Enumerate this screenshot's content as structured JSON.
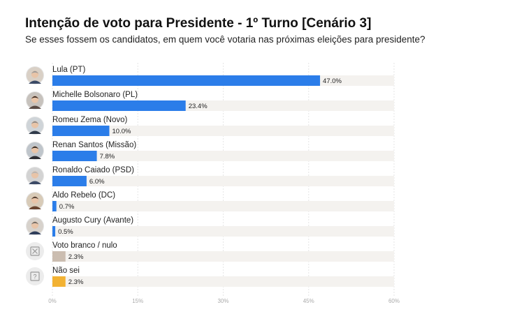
{
  "chart_data": {
    "type": "bar",
    "orientation": "horizontal",
    "title": "Intenção de voto para Presidente - 1º Turno [Cenário 3]",
    "subtitle": "Se esses fossem os candidatos, em quem você votaria nas próximas eleições para presidente?",
    "categories": [
      "Lula (PT)",
      "Michelle Bolsonaro (PL)",
      "Romeu Zema (Novo)",
      "Renan Santos (Missão)",
      "Ronaldo Caiado (PSD)",
      "Aldo Rebelo (DC)",
      "Augusto Cury (Avante)",
      "Voto branco / nulo",
      "Não sei"
    ],
    "values": [
      47.0,
      23.4,
      10.0,
      7.8,
      6.0,
      0.7,
      0.5,
      2.3,
      2.3
    ],
    "value_labels": [
      "47.0%",
      "23.4%",
      "10.0%",
      "7.8%",
      "6.0%",
      "0.7%",
      "0.5%",
      "2.3%",
      "2.3%"
    ],
    "bar_colors": [
      "#2b7de9",
      "#2b7de9",
      "#2b7de9",
      "#2b7de9",
      "#2b7de9",
      "#2b7de9",
      "#2b7de9",
      "#cbbdb0",
      "#f2b233"
    ],
    "track_color": "#f4f2ef",
    "icons": [
      "avatar-lula",
      "avatar-michelle",
      "avatar-zema",
      "avatar-renan",
      "avatar-caiado",
      "avatar-aldo",
      "avatar-cury",
      "ballot-x-icon",
      "question-icon"
    ],
    "xlim": [
      0,
      60
    ],
    "xticks": [
      0,
      15,
      30,
      45,
      60
    ],
    "xtick_labels": [
      "0%",
      "15%",
      "30%",
      "45%",
      "60%"
    ],
    "grid": true
  }
}
